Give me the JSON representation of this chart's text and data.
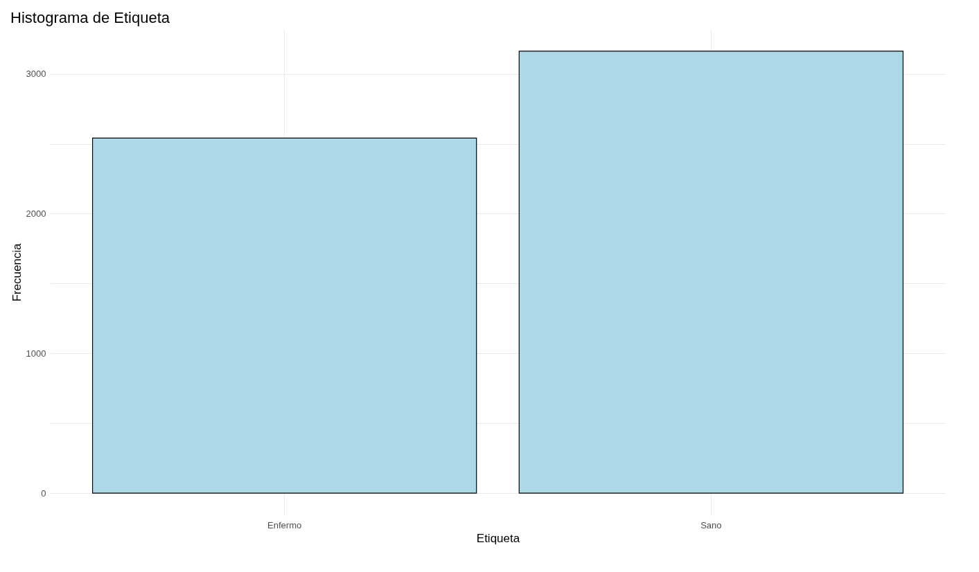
{
  "chart_data": {
    "type": "bar",
    "title": "Histograma de Etiqueta",
    "xlabel": "Etiqueta",
    "ylabel": "Frecuencia",
    "categories": [
      "Enfermo",
      "Sano"
    ],
    "values": [
      2540,
      3162
    ],
    "color": "#add8e6",
    "ylim": [
      -158,
      3320
    ],
    "yticks": [
      0,
      {
        "value": 500,
        "label": null
      },
      1000,
      {
        "value": 1500,
        "label": null
      },
      2000,
      {
        "value": 2500,
        "label": null
      },
      3000
    ],
    "grid": true
  }
}
